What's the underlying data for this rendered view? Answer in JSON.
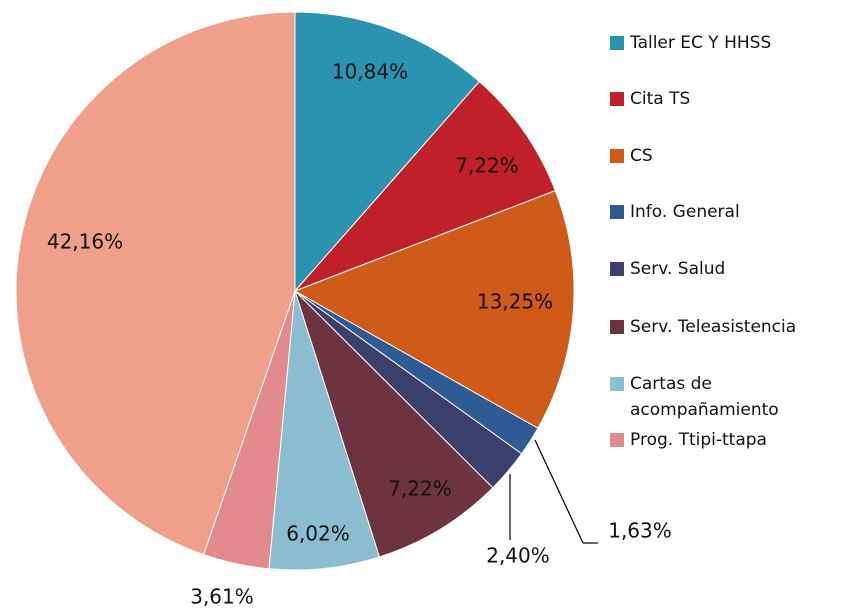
{
  "chart_data": {
    "type": "pie",
    "categories": [
      "Taller EC Y HHSS",
      "Cita TS",
      "CS",
      "Info. General",
      "Serv. Salud",
      "Serv. Teleasistencia",
      "Cartas de acompañamiento",
      "Prog. Ttipi-ttapa",
      null
    ],
    "values": [
      10.84,
      7.22,
      13.25,
      1.63,
      2.4,
      7.22,
      6.02,
      3.61,
      42.16
    ],
    "value_labels": [
      "10,84%",
      "7,22%",
      "13,25%",
      "1,63%",
      "2,40%",
      "7,22%",
      "6,02%",
      "3,61%",
      "42,16%"
    ],
    "colors": [
      "#2a93b0",
      "#c0202a",
      "#d05a18",
      "#2e5b94",
      "#3a3f6b",
      "#6e3340",
      "#8bbdd0",
      "#e38a8c",
      "#f0a08a"
    ],
    "legend": "right"
  }
}
